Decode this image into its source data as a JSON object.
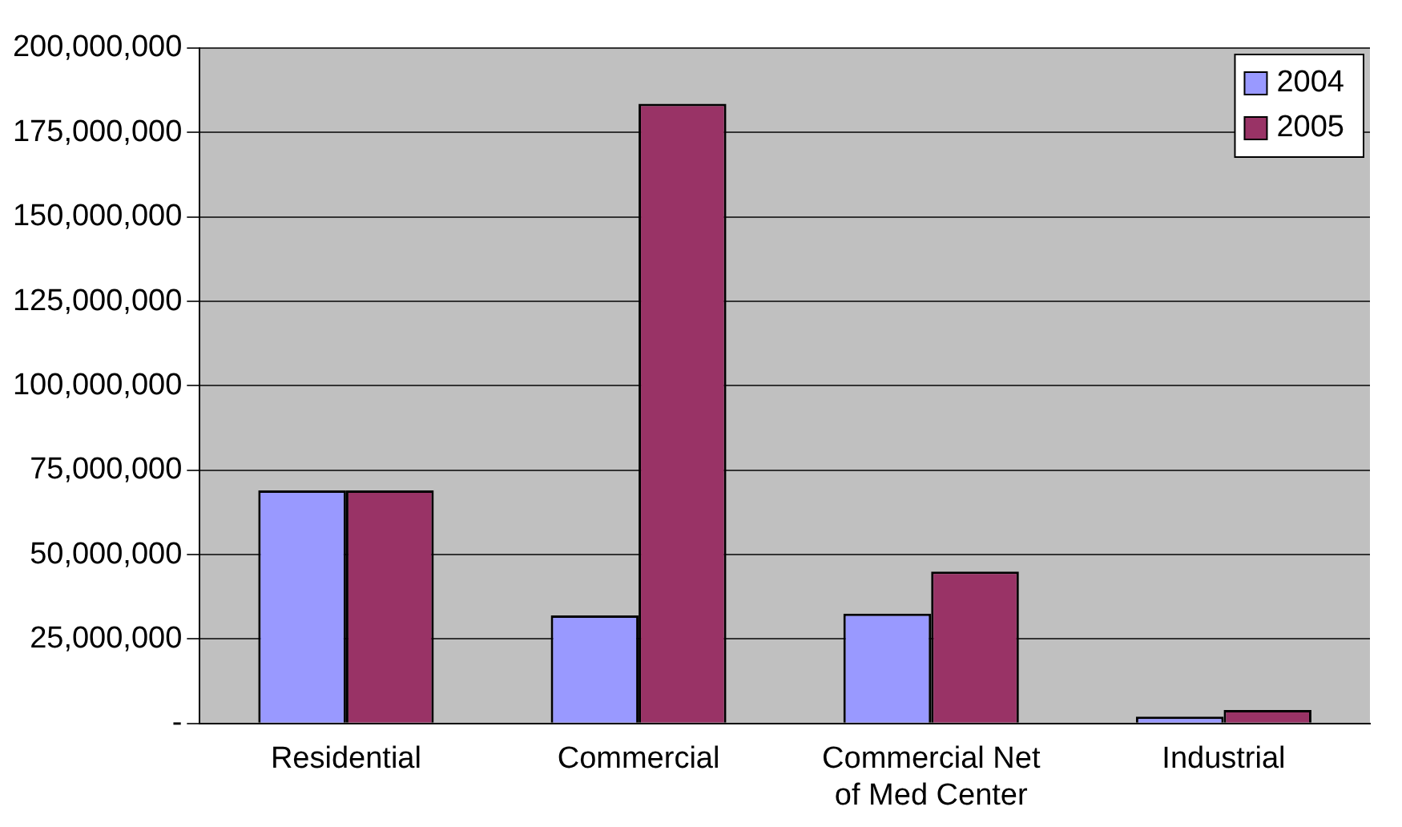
{
  "chart_data": {
    "type": "bar",
    "categories": [
      "Residential",
      "Commercial",
      "Commercial Net of Med Center",
      "Industrial"
    ],
    "series": [
      {
        "name": "2004",
        "color": "#9999ff",
        "values": [
          69000000,
          32000000,
          32500000,
          2000000
        ]
      },
      {
        "name": "2005",
        "color": "#993366",
        "values": [
          69000000,
          183500000,
          45000000,
          4000000
        ]
      }
    ],
    "ylim": [
      0,
      200000000
    ],
    "yticks": [
      {
        "value": 0,
        "label": "-"
      },
      {
        "value": 25000000,
        "label": "25,000,000"
      },
      {
        "value": 50000000,
        "label": "50,000,000"
      },
      {
        "value": 75000000,
        "label": "75,000,000"
      },
      {
        "value": 100000000,
        "label": "100,000,000"
      },
      {
        "value": 125000000,
        "label": "125,000,000"
      },
      {
        "value": 150000000,
        "label": "150,000,000"
      },
      {
        "value": 175000000,
        "label": "175,000,000"
      },
      {
        "value": 200000000,
        "label": "200,000,000"
      }
    ],
    "grid": "y",
    "legend": "top right"
  }
}
